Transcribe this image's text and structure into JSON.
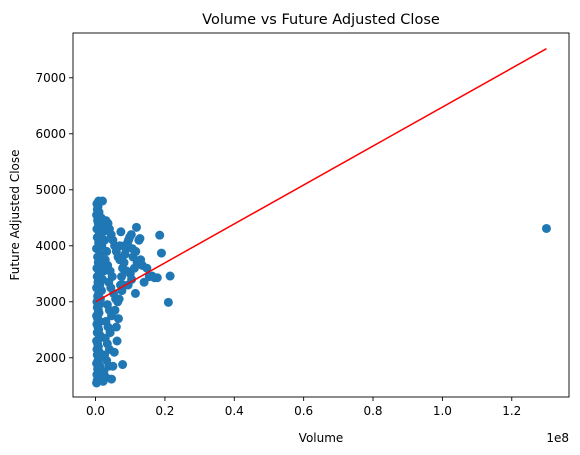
{
  "chart_data": {
    "type": "scatter",
    "title": "Volume vs Future Adjusted Close",
    "xlabel": "Volume",
    "ylabel": "Future Adjusted Close",
    "x_offset_label": "1e8",
    "xlim": [
      -0.065,
      1.365
    ],
    "ylim": [
      1300,
      7800
    ],
    "x_ticks": [
      0.0,
      0.2,
      0.4,
      0.6,
      0.8,
      1.0,
      1.2
    ],
    "x_tick_labels": [
      "0.0",
      "0.2",
      "0.4",
      "0.6",
      "0.8",
      "1.0",
      "1.2"
    ],
    "y_ticks": [
      2000,
      3000,
      4000,
      5000,
      6000,
      7000
    ],
    "y_tick_labels": [
      "2000",
      "3000",
      "4000",
      "5000",
      "6000",
      "7000"
    ],
    "grid": false,
    "colors": {
      "points": "#1f77b4",
      "fit_line": "#ff0000"
    },
    "fit_line": {
      "x": [
        0.0,
        1.3
      ],
      "y": [
        3000,
        7520
      ]
    },
    "series": [
      {
        "values": [
          {
            "x": 0.003,
            "y": 1550
          },
          {
            "x": 0.005,
            "y": 1600
          },
          {
            "x": 0.008,
            "y": 1650
          },
          {
            "x": 0.004,
            "y": 1700
          },
          {
            "x": 0.01,
            "y": 1750
          },
          {
            "x": 0.006,
            "y": 1800
          },
          {
            "x": 0.012,
            "y": 1850
          },
          {
            "x": 0.003,
            "y": 1900
          },
          {
            "x": 0.007,
            "y": 1950
          },
          {
            "x": 0.009,
            "y": 2000
          },
          {
            "x": 0.005,
            "y": 2050
          },
          {
            "x": 0.011,
            "y": 2100
          },
          {
            "x": 0.004,
            "y": 2150
          },
          {
            "x": 0.008,
            "y": 2200
          },
          {
            "x": 0.006,
            "y": 2250
          },
          {
            "x": 0.003,
            "y": 2300
          },
          {
            "x": 0.01,
            "y": 2350
          },
          {
            "x": 0.013,
            "y": 2400
          },
          {
            "x": 0.005,
            "y": 2450
          },
          {
            "x": 0.009,
            "y": 2500
          },
          {
            "x": 0.007,
            "y": 2550
          },
          {
            "x": 0.004,
            "y": 2600
          },
          {
            "x": 0.012,
            "y": 2650
          },
          {
            "x": 0.006,
            "y": 2700
          },
          {
            "x": 0.003,
            "y": 2750
          },
          {
            "x": 0.01,
            "y": 2800
          },
          {
            "x": 0.008,
            "y": 2850
          },
          {
            "x": 0.005,
            "y": 2900
          },
          {
            "x": 0.011,
            "y": 2950
          },
          {
            "x": 0.004,
            "y": 3000
          },
          {
            "x": 0.014,
            "y": 3050
          },
          {
            "x": 0.006,
            "y": 3100
          },
          {
            "x": 0.009,
            "y": 3150
          },
          {
            "x": 0.017,
            "y": 3200
          },
          {
            "x": 0.003,
            "y": 3250
          },
          {
            "x": 0.012,
            "y": 3300
          },
          {
            "x": 0.007,
            "y": 3350
          },
          {
            "x": 0.02,
            "y": 3400
          },
          {
            "x": 0.005,
            "y": 3450
          },
          {
            "x": 0.01,
            "y": 3500
          },
          {
            "x": 0.024,
            "y": 3550
          },
          {
            "x": 0.004,
            "y": 3600
          },
          {
            "x": 0.015,
            "y": 3650
          },
          {
            "x": 0.008,
            "y": 3700
          },
          {
            "x": 0.028,
            "y": 3750
          },
          {
            "x": 0.006,
            "y": 3800
          },
          {
            "x": 0.013,
            "y": 3850
          },
          {
            "x": 0.032,
            "y": 3900
          },
          {
            "x": 0.003,
            "y": 3950
          },
          {
            "x": 0.018,
            "y": 4000
          },
          {
            "x": 0.009,
            "y": 4050
          },
          {
            "x": 0.026,
            "y": 4100
          },
          {
            "x": 0.005,
            "y": 4150
          },
          {
            "x": 0.011,
            "y": 4200
          },
          {
            "x": 0.022,
            "y": 4250
          },
          {
            "x": 0.004,
            "y": 4300
          },
          {
            "x": 0.016,
            "y": 4350
          },
          {
            "x": 0.008,
            "y": 4400
          },
          {
            "x": 0.006,
            "y": 4450
          },
          {
            "x": 0.012,
            "y": 4500
          },
          {
            "x": 0.003,
            "y": 4550
          },
          {
            "x": 0.01,
            "y": 4600
          },
          {
            "x": 0.005,
            "y": 4650
          },
          {
            "x": 0.007,
            "y": 4700
          },
          {
            "x": 0.004,
            "y": 4750
          },
          {
            "x": 0.009,
            "y": 4800
          },
          {
            "x": 0.02,
            "y": 4800
          },
          {
            "x": 0.016,
            "y": 4500
          },
          {
            "x": 0.03,
            "y": 4450
          },
          {
            "x": 0.036,
            "y": 4400
          },
          {
            "x": 0.04,
            "y": 4300
          },
          {
            "x": 0.045,
            "y": 4200
          },
          {
            "x": 0.05,
            "y": 4100
          },
          {
            "x": 0.055,
            "y": 4000
          },
          {
            "x": 0.06,
            "y": 3900
          },
          {
            "x": 0.065,
            "y": 3800
          },
          {
            "x": 0.07,
            "y": 3750
          },
          {
            "x": 0.035,
            "y": 3650
          },
          {
            "x": 0.042,
            "y": 3550
          },
          {
            "x": 0.048,
            "y": 3450
          },
          {
            "x": 0.038,
            "y": 3350
          },
          {
            "x": 0.044,
            "y": 3250
          },
          {
            "x": 0.052,
            "y": 3150
          },
          {
            "x": 0.058,
            "y": 3050
          },
          {
            "x": 0.034,
            "y": 2950
          },
          {
            "x": 0.04,
            "y": 2850
          },
          {
            "x": 0.046,
            "y": 2750
          },
          {
            "x": 0.03,
            "y": 2650
          },
          {
            "x": 0.036,
            "y": 2550
          },
          {
            "x": 0.042,
            "y": 2450
          },
          {
            "x": 0.028,
            "y": 2350
          },
          {
            "x": 0.034,
            "y": 2250
          },
          {
            "x": 0.04,
            "y": 2150
          },
          {
            "x": 0.026,
            "y": 2050
          },
          {
            "x": 0.032,
            "y": 1950
          },
          {
            "x": 0.038,
            "y": 1850
          },
          {
            "x": 0.024,
            "y": 1750
          },
          {
            "x": 0.03,
            "y": 1650
          },
          {
            "x": 0.046,
            "y": 1620
          },
          {
            "x": 0.022,
            "y": 1580
          },
          {
            "x": 0.05,
            "y": 1850
          },
          {
            "x": 0.054,
            "y": 2100
          },
          {
            "x": 0.062,
            "y": 2300
          },
          {
            "x": 0.066,
            "y": 2700
          },
          {
            "x": 0.068,
            "y": 3050
          },
          {
            "x": 0.072,
            "y": 3300
          },
          {
            "x": 0.075,
            "y": 3450
          },
          {
            "x": 0.078,
            "y": 3600
          },
          {
            "x": 0.082,
            "y": 3700
          },
          {
            "x": 0.085,
            "y": 3850
          },
          {
            "x": 0.088,
            "y": 3950
          },
          {
            "x": 0.092,
            "y": 4050
          },
          {
            "x": 0.095,
            "y": 4100
          },
          {
            "x": 0.098,
            "y": 4150
          },
          {
            "x": 0.1,
            "y": 3500
          },
          {
            "x": 0.104,
            "y": 3400
          },
          {
            "x": 0.108,
            "y": 3800
          },
          {
            "x": 0.112,
            "y": 3600
          },
          {
            "x": 0.116,
            "y": 3900
          },
          {
            "x": 0.12,
            "y": 3700
          },
          {
            "x": 0.125,
            "y": 4100
          },
          {
            "x": 0.13,
            "y": 3750
          },
          {
            "x": 0.135,
            "y": 3650
          },
          {
            "x": 0.08,
            "y": 3300
          },
          {
            "x": 0.09,
            "y": 3550
          },
          {
            "x": 0.103,
            "y": 4200
          },
          {
            "x": 0.115,
            "y": 3150
          },
          {
            "x": 0.118,
            "y": 4330
          },
          {
            "x": 0.128,
            "y": 4130
          },
          {
            "x": 0.14,
            "y": 3350
          },
          {
            "x": 0.148,
            "y": 3600
          },
          {
            "x": 0.155,
            "y": 3450
          },
          {
            "x": 0.163,
            "y": 3460
          },
          {
            "x": 0.17,
            "y": 3430
          },
          {
            "x": 0.178,
            "y": 3430
          },
          {
            "x": 0.185,
            "y": 4190
          },
          {
            "x": 0.19,
            "y": 3870
          },
          {
            "x": 0.21,
            "y": 2990
          },
          {
            "x": 0.215,
            "y": 3460
          },
          {
            "x": 0.078,
            "y": 1880
          },
          {
            "x": 0.06,
            "y": 2550
          },
          {
            "x": 0.056,
            "y": 2850
          },
          {
            "x": 0.064,
            "y": 3000
          },
          {
            "x": 0.07,
            "y": 4000
          },
          {
            "x": 0.073,
            "y": 4250
          },
          {
            "x": 0.076,
            "y": 3200
          },
          {
            "x": 0.084,
            "y": 4000
          },
          {
            "x": 0.094,
            "y": 3300
          },
          {
            "x": 0.106,
            "y": 3950
          },
          {
            "x": 1.3,
            "y": 4310
          }
        ]
      }
    ]
  }
}
